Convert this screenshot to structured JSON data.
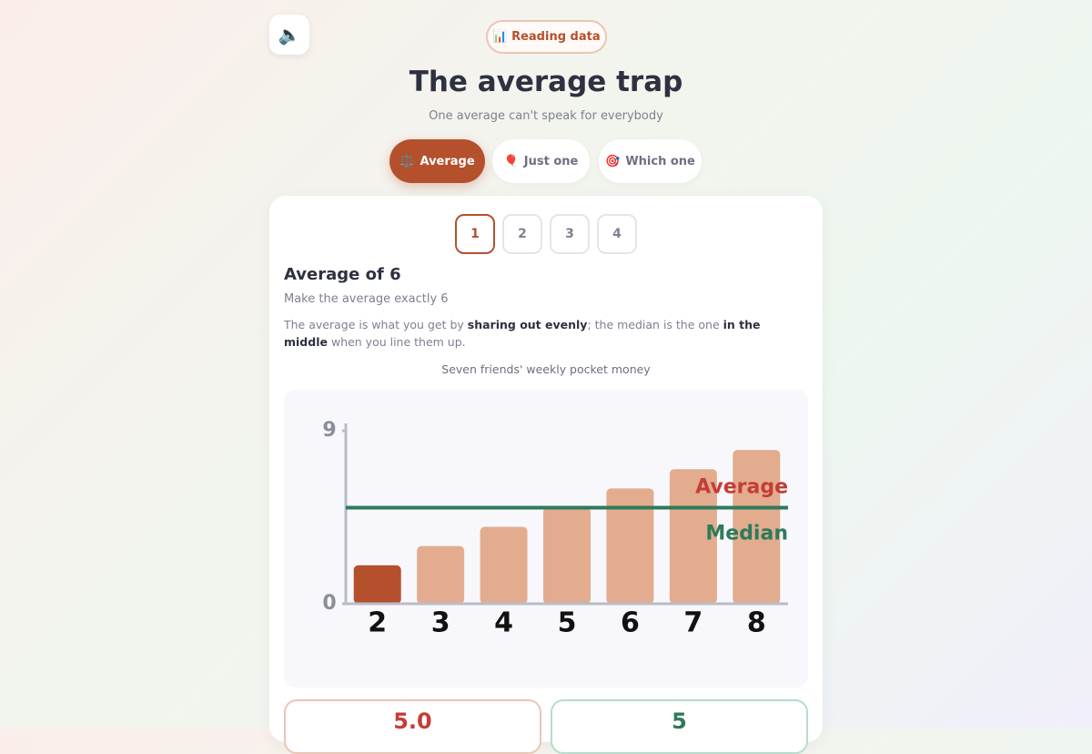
{
  "badge": "📊 Reading data",
  "title": "The average trap",
  "subtitle": "One average can't speak for everybody",
  "tabs": [
    {
      "icon": "⚖️",
      "label": "Average"
    },
    {
      "icon": "🎈",
      "label": "Just one"
    },
    {
      "icon": "🎯",
      "label": "Which one"
    }
  ],
  "steps": [
    "1",
    "2",
    "3",
    "4"
  ],
  "card": {
    "heading": "Average of 6",
    "task": "Make the average exactly 6",
    "explanation": [
      "The average is what you get by ",
      "sharing out evenly",
      "; the median is the one ",
      "in the middle",
      " when you line them up."
    ]
  },
  "chart_data": {
    "type": "bar",
    "title": "Seven friends' weekly pocket money",
    "values": [
      2,
      3,
      4,
      5,
      6,
      7,
      8
    ],
    "color": "#e3ac8f",
    "highlight_color": "#b5502d",
    "ylim": [
      0,
      9
    ],
    "yticks": [
      0,
      9
    ],
    "average": 5,
    "average_label": "Average",
    "average_color": "#c43d36",
    "median": 5,
    "median_label": "Median",
    "median_color": "#2e7a5a"
  },
  "stats": {
    "average": {
      "value": 5,
      "label": "5.0"
    },
    "median": 5
  }
}
